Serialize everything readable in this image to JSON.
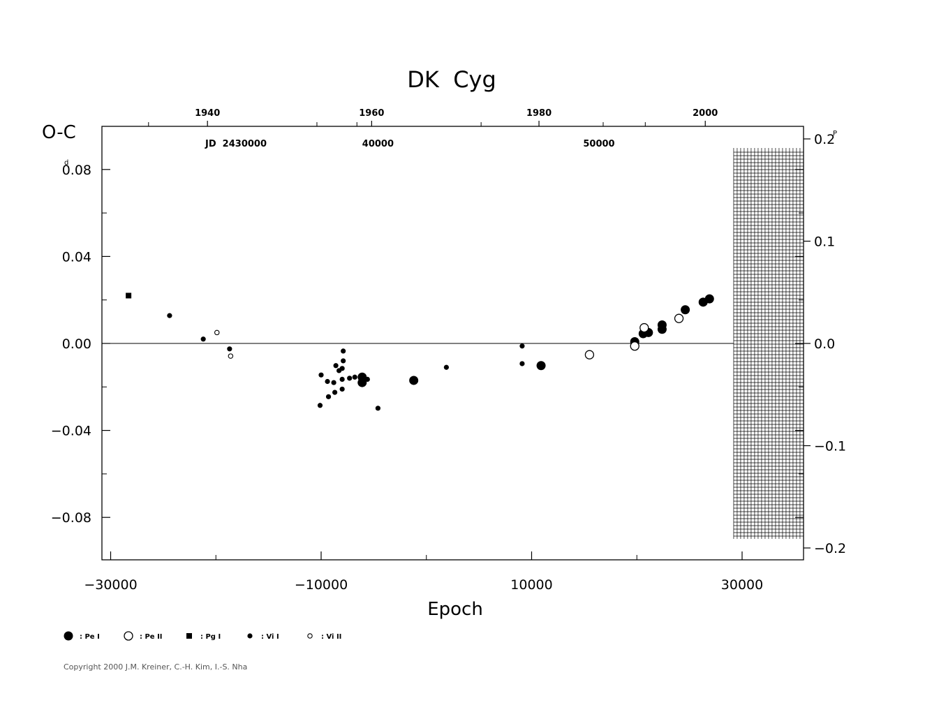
{
  "chart_data": {
    "type": "scatter",
    "title": "DK  Cyg",
    "xlabel": "Epoch",
    "ylabel": "O-C",
    "ylabel_unit": "d",
    "y2_unit": "P",
    "xlim": [
      -31000,
      37000
    ],
    "ylim": [
      -0.1,
      0.1
    ],
    "y2lim": [
      -0.2,
      0.2
    ],
    "x_ticks": [
      -30000,
      -10000,
      10000,
      30000
    ],
    "x_tick_labels": [
      "−30000",
      "−10000",
      "10000",
      "30000"
    ],
    "y_ticks": [
      0.08,
      0.04,
      0.0,
      -0.04,
      -0.08
    ],
    "y_tick_labels": [
      "0.08",
      "0.04",
      "0.00",
      "−0.04",
      "−0.08"
    ],
    "y_tick_label_top": "0.08",
    "y2_ticks": [
      0.2,
      0.1,
      0.0,
      -0.1,
      -0.2
    ],
    "y2_tick_labels": [
      "0.2",
      "0.1",
      "0.0",
      "−0.1",
      "−0.2"
    ],
    "top_year_labels": [
      "1940",
      "1960",
      "1980",
      "2000"
    ],
    "top_year_epochs": [
      -20800,
      -5200,
      10700,
      26500
    ],
    "top_minor_epochs": [
      -26400,
      -10400,
      -6600,
      5200,
      16800,
      20800
    ],
    "jd_label": "JD  2430000",
    "jd_labels": [
      "40000",
      "50000"
    ],
    "jd_label_epochs": [
      -4600,
      16400
    ],
    "zero_line": true,
    "grid_region_xrange": [
      29200,
      37000
    ],
    "series": [
      {
        "name": "Pe I",
        "marker": "filled-circle-large",
        "points": [
          [
            -6100,
            -0.0155
          ],
          [
            -6100,
            -0.018
          ],
          [
            -1200,
            -0.017
          ],
          [
            10900,
            -0.0102
          ],
          [
            19800,
            0.0008
          ],
          [
            20600,
            0.0045
          ],
          [
            21100,
            0.005
          ],
          [
            22400,
            0.0085
          ],
          [
            22400,
            0.0065
          ],
          [
            24600,
            0.0155
          ],
          [
            26300,
            0.019
          ],
          [
            26900,
            0.0205
          ]
        ]
      },
      {
        "name": "Pe II",
        "marker": "open-circle-large",
        "points": [
          [
            15500,
            -0.0052
          ],
          [
            19800,
            -0.0012
          ],
          [
            20700,
            0.0072
          ],
          [
            24000,
            0.0115
          ]
        ]
      },
      {
        "name": "Pg I",
        "marker": "filled-square",
        "points": [
          [
            -28300,
            0.022
          ]
        ]
      },
      {
        "name": "Vi I",
        "marker": "filled-circle-small",
        "points": [
          [
            -24400,
            0.0128
          ],
          [
            -21200,
            0.002
          ],
          [
            -18700,
            -0.0025
          ],
          [
            -10000,
            -0.0145
          ],
          [
            -10100,
            -0.0285
          ],
          [
            -9400,
            -0.0175
          ],
          [
            -9300,
            -0.0245
          ],
          [
            -8800,
            -0.018
          ],
          [
            -8700,
            -0.0225
          ],
          [
            -8600,
            -0.0102
          ],
          [
            -8300,
            -0.0125
          ],
          [
            -8000,
            -0.0115
          ],
          [
            -8000,
            -0.0165
          ],
          [
            -8000,
            -0.021
          ],
          [
            -7900,
            -0.0035
          ],
          [
            -7900,
            -0.008
          ],
          [
            -7300,
            -0.016
          ],
          [
            -6800,
            -0.0155
          ],
          [
            -5600,
            -0.0165
          ],
          [
            -4600,
            -0.0298
          ],
          [
            1900,
            -0.011
          ],
          [
            9100,
            -0.0012
          ],
          [
            9100,
            -0.0093
          ]
        ]
      },
      {
        "name": "Vi II",
        "marker": "open-circle-small",
        "points": [
          [
            -19900,
            0.005
          ],
          [
            -18600,
            -0.0058
          ]
        ]
      }
    ]
  },
  "legend": [
    {
      "label": ": Pe I",
      "marker": "filled-circle-large"
    },
    {
      "label": ": Pe II",
      "marker": "open-circle-large"
    },
    {
      "label": ": Pg I",
      "marker": "filled-square"
    },
    {
      "label": ": Vi I",
      "marker": "filled-circle-small"
    },
    {
      "label": ": Vi II",
      "marker": "open-circle-small"
    }
  ],
  "copyright": "Copyright 2000 J.M. Kreiner, C.-H. Kim, I.-S. Nha"
}
